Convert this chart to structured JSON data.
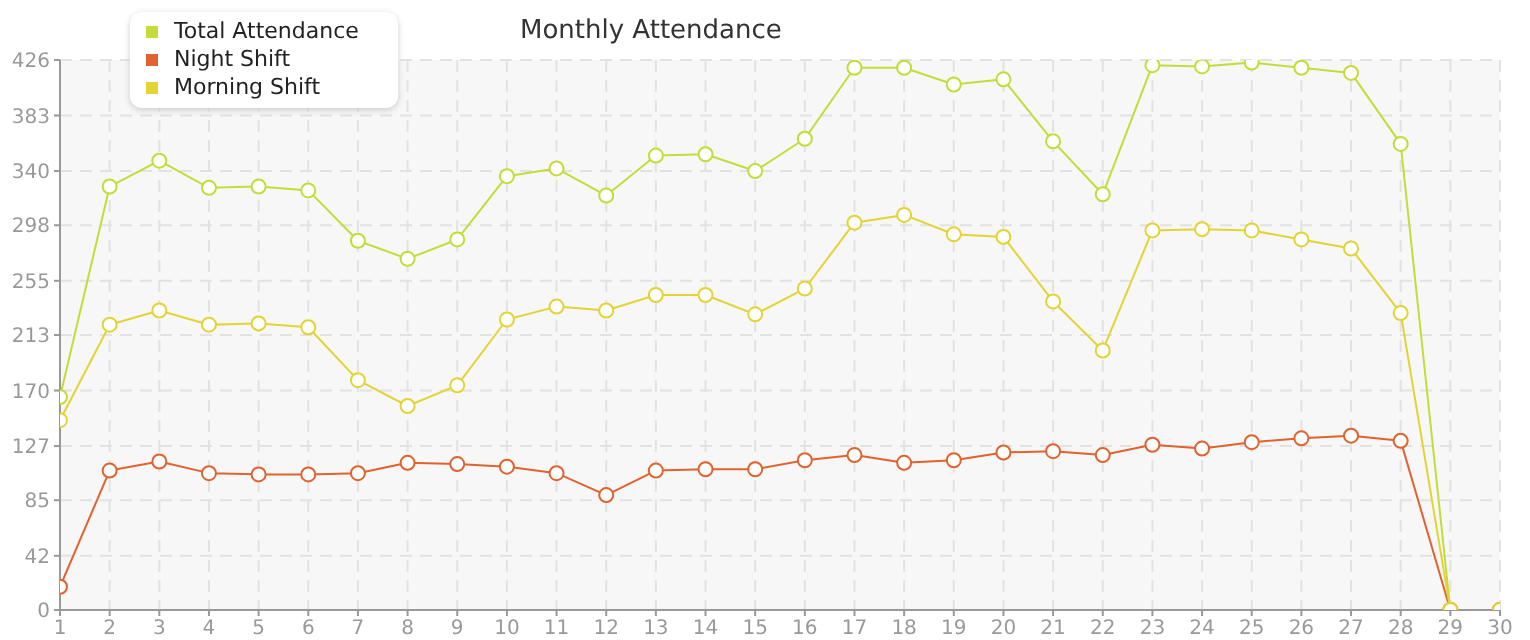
{
  "chart_data": {
    "type": "line",
    "title": "Monthly Attendance",
    "x": [
      1,
      2,
      3,
      4,
      5,
      6,
      7,
      8,
      9,
      10,
      11,
      12,
      13,
      14,
      15,
      16,
      17,
      18,
      19,
      20,
      21,
      22,
      23,
      24,
      25,
      26,
      27,
      28,
      29,
      30
    ],
    "xlim": [
      1,
      30
    ],
    "xticks": [
      1,
      2,
      3,
      4,
      5,
      6,
      7,
      8,
      9,
      10,
      11,
      12,
      13,
      14,
      15,
      16,
      17,
      18,
      19,
      20,
      21,
      22,
      23,
      24,
      25,
      26,
      27,
      28,
      29,
      30
    ],
    "ylim": [
      0,
      426
    ],
    "yticks": [
      0,
      42,
      85,
      127,
      170,
      213,
      255,
      298,
      340,
      383,
      426
    ],
    "series": [
      {
        "name": "Total Attendance",
        "color": "#c4dc3a",
        "values": [
          165,
          328,
          348,
          327,
          328,
          325,
          286,
          272,
          287,
          336,
          342,
          321,
          352,
          353,
          340,
          365,
          420,
          420,
          407,
          411,
          363,
          322,
          422,
          421,
          424,
          420,
          416,
          361,
          0,
          0
        ]
      },
      {
        "name": "Night Shift",
        "color": "#e0622e",
        "values": [
          18,
          108,
          115,
          106,
          105,
          105,
          106,
          114,
          113,
          111,
          106,
          89,
          108,
          109,
          109,
          116,
          120,
          114,
          116,
          122,
          123,
          120,
          128,
          125,
          130,
          133,
          135,
          131,
          0,
          0
        ]
      },
      {
        "name": "Morning Shift",
        "color": "#e2d435",
        "values": [
          147,
          221,
          232,
          221,
          222,
          219,
          178,
          158,
          174,
          225,
          235,
          232,
          244,
          244,
          229,
          249,
          300,
          306,
          291,
          289,
          239,
          201,
          294,
          295,
          294,
          287,
          280,
          230,
          0,
          0
        ]
      }
    ],
    "grid": true,
    "legend": "top left",
    "marker": "circle",
    "line_style": "solid"
  }
}
